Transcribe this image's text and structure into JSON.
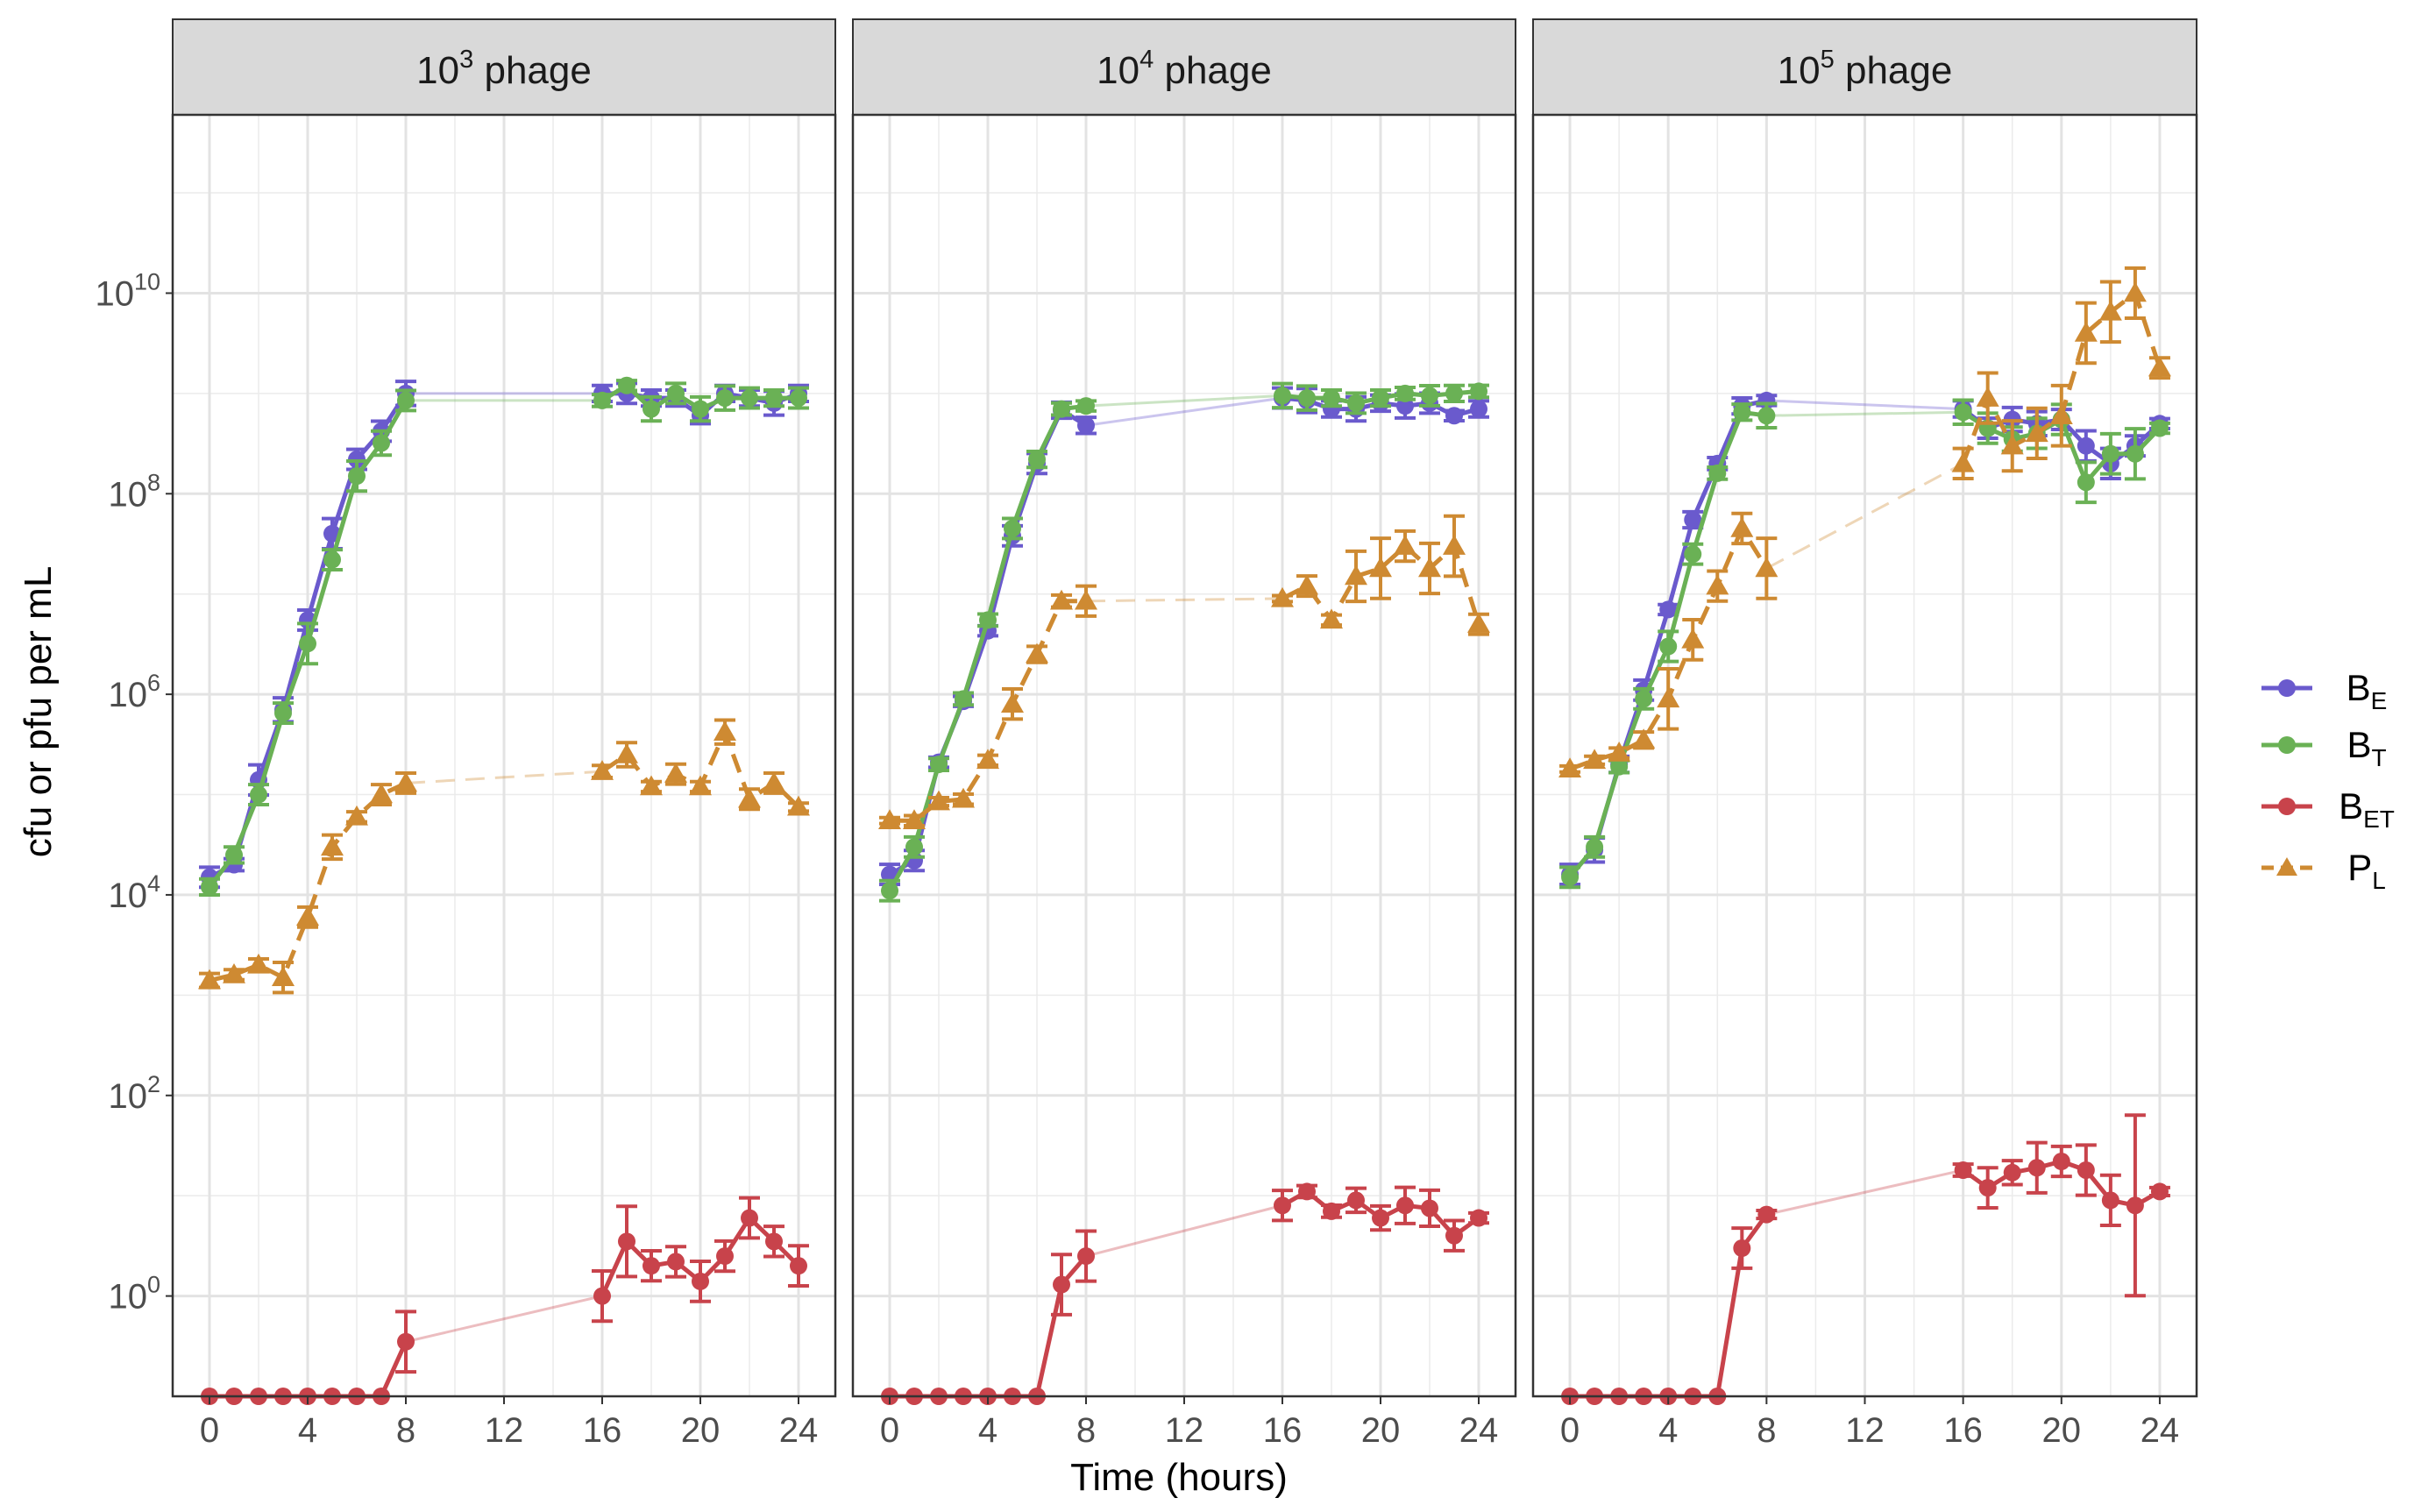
{
  "colors": {
    "B_E": "#6A5ACD",
    "B_T": "#6AB155",
    "B_ET": "#C8434B",
    "P_L": "#CE8A32",
    "strip_bg": "#D9D9D9",
    "panel_border": "#333333",
    "grid": "#EBEBEB"
  },
  "ylabel": "cfu or pfu per mL",
  "xlabel": "Time (hours)",
  "panels": [
    {
      "base": "10",
      "exp": "3",
      "suffix": " phage"
    },
    {
      "base": "10",
      "exp": "4",
      "suffix": " phage"
    },
    {
      "base": "10",
      "exp": "5",
      "suffix": " phage"
    }
  ],
  "y_ticks": [
    {
      "base": "10",
      "exp": "0"
    },
    {
      "base": "10",
      "exp": "2"
    },
    {
      "base": "10",
      "exp": "4"
    },
    {
      "base": "10",
      "exp": "6"
    },
    {
      "base": "10",
      "exp": "8"
    },
    {
      "base": "10",
      "exp": "10"
    }
  ],
  "x_ticks": [
    "0",
    "4",
    "8",
    "12",
    "16",
    "20",
    "24"
  ],
  "legend": [
    {
      "key": "B_E",
      "base": "B",
      "sub": "E"
    },
    {
      "key": "B_T",
      "base": "B",
      "sub": "T"
    },
    {
      "key": "B_ET",
      "base": "B",
      "sub": "ET"
    },
    {
      "key": "P_L",
      "base": "P",
      "sub": "L"
    }
  ],
  "chart_data": {
    "type": "line",
    "facets": [
      "10^3 phage",
      "10^4 phage",
      "10^5 phage"
    ],
    "x_unit": "hours",
    "xlim": [
      -1.5,
      25.5
    ],
    "y_scale": "log10",
    "ylim": [
      0.1,
      600000000000
    ],
    "grid": true,
    "legend_position": "right",
    "note": "Solid segments connect hourly samples 0-8 h and 16-24 h; the 8-16 h gap is drawn as a faint connector. B_ET values at the lower plot edge are below detection.",
    "x": [
      0,
      1,
      2,
      3,
      4,
      5,
      6,
      7,
      8,
      16,
      17,
      18,
      19,
      20,
      21,
      22,
      23,
      24
    ],
    "series": [
      {
        "facet": 0,
        "key": "B_E",
        "values": [
          15000,
          20000,
          140000,
          700000,
          5500000,
          40000000,
          220000000,
          420000000,
          1000000000,
          1000000000,
          1000000000,
          900000000,
          900000000,
          600000000,
          1000000000,
          900000000,
          800000000,
          1000000000
        ],
        "err": [
          0.1,
          0.06,
          0.15,
          0.12,
          0.1,
          0.15,
          0.1,
          0.1,
          0.12,
          0.08,
          0.1,
          0.08,
          0.08,
          0.08,
          0.08,
          0.08,
          0.12,
          0.08
        ]
      },
      {
        "facet": 0,
        "key": "B_T",
        "values": [
          12000,
          25000,
          100000,
          650000,
          3200000,
          22000000,
          150000000,
          320000000,
          850000000,
          850000000,
          1200000000,
          700000000,
          1000000000,
          700000000,
          900000000,
          900000000,
          900000000,
          900000000
        ],
        "err": [
          0.08,
          0.08,
          0.1,
          0.1,
          0.2,
          0.1,
          0.15,
          0.12,
          0.1,
          0.06,
          0.05,
          0.12,
          0.1,
          0.12,
          0.12,
          0.1,
          0.08,
          0.1
        ]
      },
      {
        "facet": 0,
        "key": "B_ET",
        "values": [
          0.1,
          0.1,
          0.1,
          0.1,
          0.1,
          0.1,
          0.1,
          0.1,
          0.35,
          1.0,
          3.5,
          2.0,
          2.2,
          1.4,
          2.5,
          6.0,
          3.5,
          2.0
        ],
        "err": [
          0,
          0,
          0,
          0,
          0,
          0,
          0,
          0,
          0.3,
          0.25,
          0.35,
          0.15,
          0.15,
          0.2,
          0.15,
          0.2,
          0.15,
          0.2
        ]
      },
      {
        "facet": 0,
        "key": "P_L",
        "values": [
          1400,
          1600,
          2000,
          1500,
          6000,
          30000,
          60000,
          100000,
          130000,
          170000,
          250000,
          120000,
          160000,
          120000,
          420000,
          90000,
          130000,
          75000
        ],
        "err": [
          0.07,
          0.05,
          0.06,
          0.15,
          0.1,
          0.12,
          0.05,
          0.1,
          0.1,
          0.06,
          0.12,
          0.05,
          0.1,
          0.05,
          0.12,
          0.1,
          0.1,
          0.04
        ]
      },
      {
        "facet": 1,
        "key": "B_E",
        "values": [
          16000,
          22000,
          210000,
          850000,
          4300000,
          38000000,
          200000000,
          680000000,
          480000000,
          900000000,
          850000000,
          700000000,
          700000000,
          800000000,
          750000000,
          800000000,
          600000000,
          700000000
        ],
        "err": [
          0.1,
          0.1,
          0.05,
          0.05,
          0.05,
          0.1,
          0.1,
          0.08,
          0.08,
          0.1,
          0.12,
          0.08,
          0.12,
          0.08,
          0.12,
          0.1,
          0.05,
          0.08
        ]
      },
      {
        "facet": 1,
        "key": "B_T",
        "values": [
          11000,
          30000,
          200000,
          900000,
          5500000,
          45000000,
          220000000,
          700000000,
          750000000,
          950000000,
          900000000,
          900000000,
          800000000,
          900000000,
          1000000000,
          950000000,
          1000000000,
          1050000000
        ],
        "err": [
          0.1,
          0.1,
          0.06,
          0.06,
          0.06,
          0.1,
          0.08,
          0.06,
          0.05,
          0.12,
          0.12,
          0.08,
          0.1,
          0.08,
          0.06,
          0.1,
          0.08,
          0.06
        ]
      },
      {
        "facet": 1,
        "key": "B_ET",
        "values": [
          0.1,
          0.1,
          0.1,
          0.1,
          0.1,
          0.1,
          0.1,
          1.3,
          2.5,
          8.0,
          11.0,
          7.0,
          9.0,
          6.0,
          8.0,
          7.5,
          4.0,
          6.0
        ],
        "err": [
          0,
          0,
          0,
          0,
          0,
          0,
          0,
          0.3,
          0.25,
          0.15,
          0.06,
          0.06,
          0.12,
          0.12,
          0.18,
          0.18,
          0.15,
          0.05
        ]
      },
      {
        "facet": 1,
        "key": "P_L",
        "values": [
          55000,
          55000,
          85000,
          90000,
          220000,
          800000,
          2500000,
          8500000,
          8500000,
          9000000,
          12000000,
          5500000,
          15000000,
          18000000,
          30000000,
          18000000,
          30000000,
          5000000
        ],
        "err": [
          0.03,
          0.05,
          0.04,
          0.05,
          0.05,
          0.15,
          0.08,
          0.06,
          0.15,
          0.03,
          0.1,
          0.05,
          0.25,
          0.3,
          0.15,
          0.25,
          0.3,
          0.1
        ]
      },
      {
        "facet": 2,
        "key": "B_E",
        "values": [
          16000,
          28000,
          200000,
          1100000,
          7000000,
          55000000,
          200000000,
          750000000,
          850000000,
          700000000,
          450000000,
          550000000,
          500000000,
          550000000,
          300000000,
          200000000,
          300000000,
          500000000
        ],
        "err": [
          0.1,
          0.12,
          0.08,
          0.1,
          0.05,
          0.08,
          0.06,
          0.08,
          0.05,
          0.08,
          0.1,
          0.12,
          0.12,
          0.1,
          0.15,
          0.15,
          0.1,
          0.05
        ]
      },
      {
        "facet": 2,
        "key": "B_T",
        "values": [
          15000,
          30000,
          190000,
          900000,
          3000000,
          25000000,
          160000000,
          650000000,
          600000000,
          650000000,
          450000000,
          350000000,
          400000000,
          550000000,
          130000000,
          250000000,
          250000000,
          450000000
        ],
        "err": [
          0.1,
          0.1,
          0.06,
          0.1,
          0.15,
          0.1,
          0.06,
          0.08,
          0.12,
          0.12,
          0.15,
          0.12,
          0.15,
          0.15,
          0.2,
          0.2,
          0.25,
          0.05
        ]
      },
      {
        "facet": 2,
        "key": "B_ET",
        "values": [
          0.1,
          0.1,
          0.1,
          0.1,
          0.1,
          0.1,
          0.1,
          3.0,
          6.5,
          18.0,
          12.0,
          17.0,
          19.0,
          22.0,
          18.0,
          9.0,
          8.0,
          11.0
        ],
        "err": [
          0,
          0,
          0,
          0,
          0,
          0,
          0,
          0.2,
          0.04,
          0.06,
          0.2,
          0.12,
          0.25,
          0.15,
          0.25,
          0.25,
          0.9,
          0.04
        ]
      },
      {
        "facet": 2,
        "key": "P_L",
        "values": [
          180000,
          220000,
          260000,
          350000,
          900000,
          3500000,
          12000000,
          45000000,
          18000000,
          200000000,
          900000000,
          300000000,
          400000000,
          600000000,
          4000000000,
          6500000000,
          10000000000,
          1800000000
        ],
        "err": [
          0.03,
          0.04,
          0.05,
          0.08,
          0.3,
          0.2,
          0.15,
          0.15,
          0.3,
          0.15,
          0.25,
          0.25,
          0.25,
          0.3,
          0.3,
          0.3,
          0.25,
          0.1
        ]
      }
    ]
  }
}
